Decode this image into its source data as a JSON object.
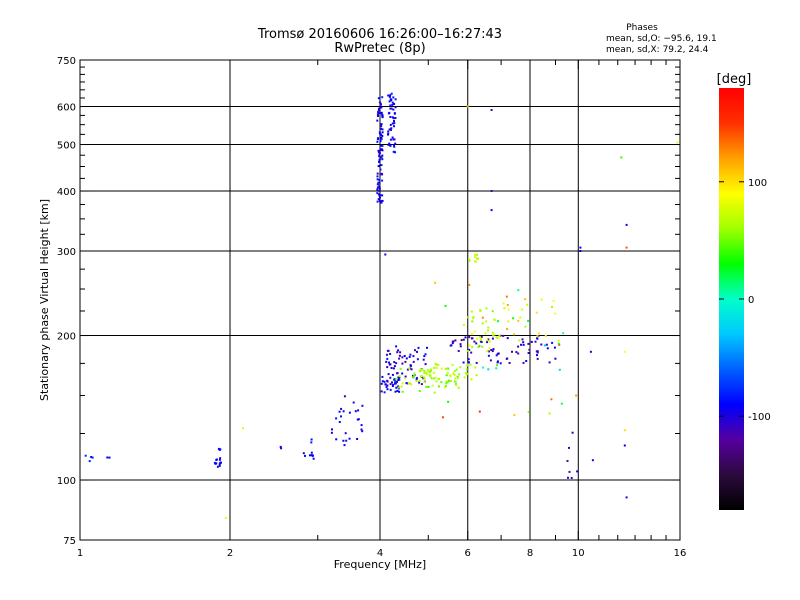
{
  "chart_data": {
    "type": "scatter",
    "title": "Tromsø 20160606 16:26:00–16:27:43",
    "subtitle": "RwPretec (8p)",
    "phase_box": {
      "title": "Phases",
      "line_o": "mean, sd,O: −95.6, 19.1",
      "line_x": "mean, sd,X:  79.2, 24.4"
    },
    "xlabel": "Frequency [MHz]",
    "ylabel": "Stationary phase Virtual Height [km]",
    "x_scale": "log",
    "y_scale": "log",
    "xlim": [
      1,
      16
    ],
    "ylim": [
      75,
      750
    ],
    "x_ticks": [
      1,
      2,
      4,
      6,
      8,
      10,
      16
    ],
    "x_tick_labels": [
      "1",
      "2",
      "4",
      "6",
      "8",
      "10",
      "16"
    ],
    "y_ticks": [
      75,
      100,
      200,
      300,
      400,
      500,
      600,
      750
    ],
    "y_tick_labels": [
      "75",
      "100",
      "200",
      "300",
      "400",
      "500",
      "600",
      "750"
    ],
    "grid": true,
    "colorbar": {
      "label": "[deg]",
      "range": [
        -180,
        180
      ],
      "ticks": [
        100,
        0,
        -100
      ],
      "tick_labels": [
        "100",
        "0",
        "-100"
      ],
      "colors": [
        "#000000",
        "#2b0a3d",
        "#5500a0",
        "#0000ff",
        "#0060ff",
        "#00c8ff",
        "#00ffc8",
        "#00ff00",
        "#a0ff00",
        "#ffff00",
        "#ffa000",
        "#ff3000",
        "#ff0000"
      ]
    },
    "clusters": [
      {
        "f": [
          1.02,
          1.06
        ],
        "h": [
          108,
          113
        ],
        "n": 4,
        "phase": [
          -95,
          -70
        ]
      },
      {
        "f": [
          1.13,
          1.15
        ],
        "h": [
          111,
          113
        ],
        "n": 2,
        "phase": [
          -95,
          -90
        ]
      },
      {
        "f": [
          1.85,
          1.92
        ],
        "h": [
          106,
          112
        ],
        "n": 14,
        "phase": [
          -100,
          -80
        ]
      },
      {
        "f": [
          1.9,
          1.93
        ],
        "h": [
          115,
          119
        ],
        "n": 3,
        "phase": [
          -95,
          -85
        ]
      },
      {
        "f": [
          2.1,
          2.15
        ],
        "h": [
          126,
          130
        ],
        "n": 1,
        "phase": [
          80,
          80
        ]
      },
      {
        "f": [
          1.95,
          1.97
        ],
        "h": [
          82,
          84
        ],
        "n": 1,
        "phase": [
          80,
          80
        ]
      },
      {
        "f": [
          2.5,
          2.55
        ],
        "h": [
          115,
          120
        ],
        "n": 2,
        "phase": [
          -100,
          -85
        ]
      },
      {
        "f": [
          2.8,
          2.95
        ],
        "h": [
          110,
          114
        ],
        "n": 8,
        "phase": [
          -100,
          -80
        ]
      },
      {
        "f": [
          2.9,
          2.95
        ],
        "h": [
          118,
          122
        ],
        "n": 2,
        "phase": [
          -90,
          -80
        ]
      },
      {
        "f": [
          3.2,
          3.8
        ],
        "h": [
          118,
          150
        ],
        "n": 26,
        "phase": [
          -110,
          -85
        ]
      },
      {
        "f": [
          3.95,
          4.05
        ],
        "h": [
          375,
          640
        ],
        "n": 90,
        "phase": [
          -110,
          -80
        ]
      },
      {
        "f": [
          4.15,
          4.3
        ],
        "h": [
          480,
          640
        ],
        "n": 50,
        "phase": [
          -105,
          -80
        ]
      },
      {
        "f": [
          4.0,
          4.4
        ],
        "h": [
          152,
          165
        ],
        "n": 30,
        "phase": [
          -110,
          -80
        ]
      },
      {
        "f": [
          4.1,
          5.0
        ],
        "h": [
          158,
          190
        ],
        "n": 70,
        "phase": [
          -120,
          -80
        ]
      },
      {
        "f": [
          4.3,
          5.8
        ],
        "h": [
          152,
          172
        ],
        "n": 60,
        "phase": [
          40,
          80
        ]
      },
      {
        "f": [
          4.8,
          6.3
        ],
        "h": [
          162,
          175
        ],
        "n": 40,
        "phase": [
          55,
          75
        ]
      },
      {
        "f": [
          5.5,
          9.0
        ],
        "h": [
          175,
          200
        ],
        "n": 80,
        "phase": [
          -130,
          -85
        ]
      },
      {
        "f": [
          6.0,
          7.0
        ],
        "h": [
          185,
          230
        ],
        "n": 40,
        "phase": [
          50,
          90
        ]
      },
      {
        "f": [
          6.0,
          6.3
        ],
        "h": [
          285,
          295
        ],
        "n": 10,
        "phase": [
          60,
          75
        ]
      },
      {
        "f": [
          7.0,
          9.0
        ],
        "h": [
          195,
          240
        ],
        "n": 20,
        "phase": [
          60,
          120
        ]
      },
      {
        "f": [
          5.0,
          9.5
        ],
        "h": [
          135,
          260
        ],
        "n": 30,
        "phase": [
          -30,
          160
        ]
      },
      {
        "f": [
          9.5,
          10.0
        ],
        "h": [
          95,
          140
        ],
        "n": 5,
        "phase": [
          -120,
          -90
        ]
      }
    ],
    "points": [
      {
        "f": 6.7,
        "h": 590,
        "phase": -110
      },
      {
        "f": 6.7,
        "h": 400,
        "phase": -110
      },
      {
        "f": 6.7,
        "h": 365,
        "phase": -100
      },
      {
        "f": 4.1,
        "h": 295,
        "phase": -100
      },
      {
        "f": 6.0,
        "h": 600,
        "phase": 110
      },
      {
        "f": 10.1,
        "h": 305,
        "phase": -95
      },
      {
        "f": 10.1,
        "h": 300,
        "phase": -90
      },
      {
        "f": 12.2,
        "h": 470,
        "phase": 40
      },
      {
        "f": 12.5,
        "h": 340,
        "phase": -95
      },
      {
        "f": 12.5,
        "h": 305,
        "phase": 140
      },
      {
        "f": 15.8,
        "h": 505,
        "phase": 80
      },
      {
        "f": 10.6,
        "h": 185,
        "phase": -100
      },
      {
        "f": 12.4,
        "h": 185,
        "phase": 90
      },
      {
        "f": 9.9,
        "h": 150,
        "phase": 120
      },
      {
        "f": 12.4,
        "h": 127,
        "phase": 100
      },
      {
        "f": 12.4,
        "h": 118,
        "phase": -90
      },
      {
        "f": 10.7,
        "h": 110,
        "phase": -95
      },
      {
        "f": 12.5,
        "h": 92,
        "phase": -100
      },
      {
        "f": 9.6,
        "h": 104,
        "phase": -125
      },
      {
        "f": 9.7,
        "h": 101,
        "phase": -110
      }
    ]
  }
}
